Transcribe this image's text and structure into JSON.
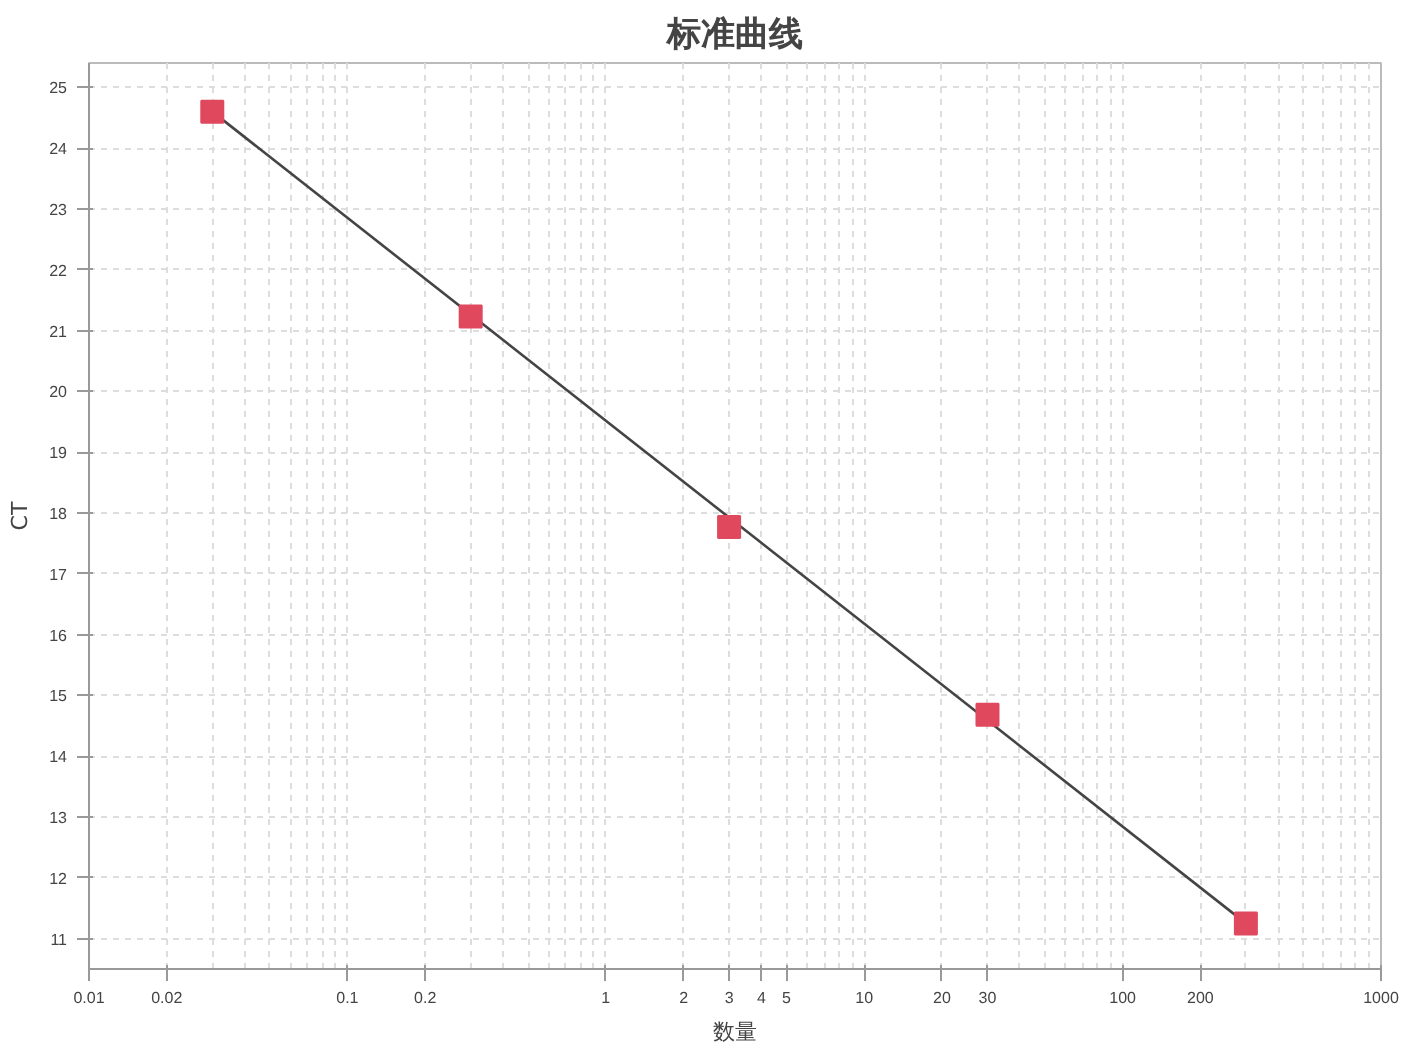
{
  "chart_data": {
    "type": "scatter",
    "title": "标准曲线",
    "xlabel": "数量",
    "ylabel": "CT",
    "log": "x",
    "grid": true,
    "xlim": [
      0.01,
      1000
    ],
    "xticks": [
      0.01,
      0.02,
      0.1,
      0.2,
      1,
      2,
      3,
      4,
      5,
      10,
      20,
      30,
      100,
      200,
      1000
    ],
    "ylim": [
      10.5,
      25.4
    ],
    "yticks": [
      11,
      12,
      13,
      14,
      15,
      16,
      17,
      18,
      19,
      20,
      21,
      22,
      23,
      24,
      25
    ],
    "series": [
      {
        "type": "line",
        "color": "#444444",
        "x": [
          0.03,
          300
        ],
        "values": [
          24.6,
          11.25
        ],
        "line_style": "solid"
      },
      {
        "color": "#e0485e",
        "marker": "square",
        "x": [
          0.03,
          0.3,
          3,
          30,
          300
        ],
        "values": [
          24.6,
          21.23,
          17.77,
          14.68,
          11.25
        ]
      }
    ]
  }
}
